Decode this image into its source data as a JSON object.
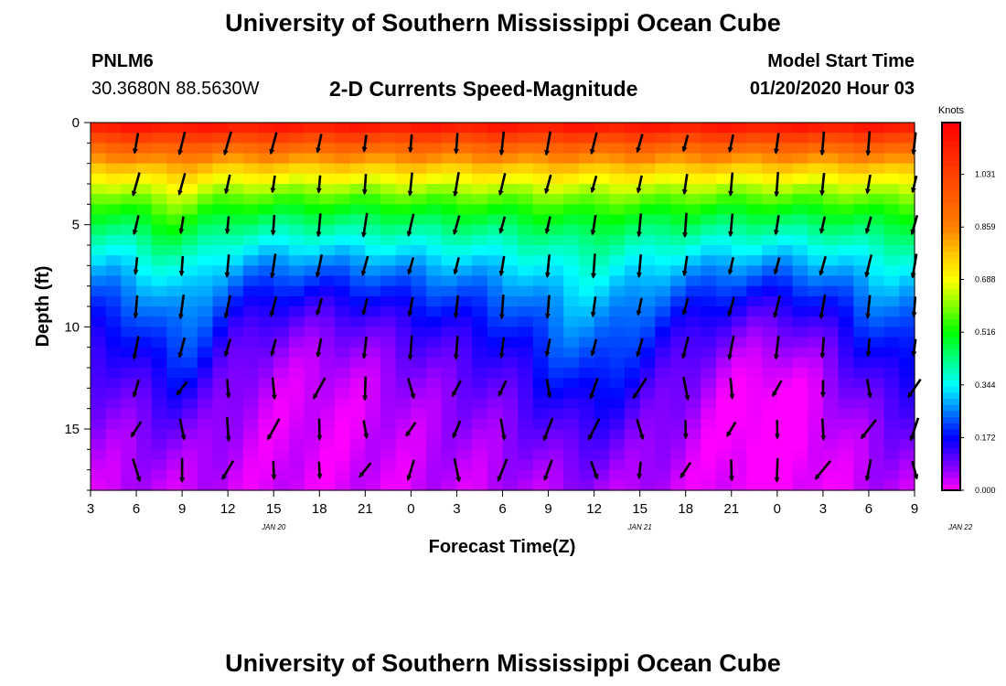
{
  "header": {
    "title": "University of Southern Mississippi Ocean Cube",
    "station": "PNLM6",
    "coords": "30.3680N 88.5630W",
    "subtitle": "2-D Currents Speed-Magnitude",
    "model_label": "Model Start Time",
    "model_time": "01/20/2020 Hour 03"
  },
  "footer": {
    "title": "University of Southern Mississippi Ocean Cube"
  },
  "chart_data": {
    "type": "heatmap",
    "title": "2-D Currents Speed-Magnitude",
    "xlabel": "Forecast Time(Z)",
    "ylabel": "Depth (ft)",
    "x_tick_labels": [
      "3",
      "6",
      "9",
      "12",
      "15",
      "18",
      "21",
      "0",
      "3",
      "6",
      "9",
      "12",
      "15",
      "18",
      "21",
      "0",
      "3",
      "6",
      "9"
    ],
    "x_date_labels": [
      {
        "label": "JAN 20",
        "at_hour": 15
      },
      {
        "label": "JAN 21",
        "at_hour": 39
      },
      {
        "label": "JAN 22",
        "at_hour": 60
      }
    ],
    "x_range_hours": [
      3,
      57
    ],
    "y_ticks": [
      0,
      5,
      10,
      15
    ],
    "y_tick_labels": [
      "0",
      "5",
      "10",
      "15"
    ],
    "y_range_ft": [
      0,
      18
    ],
    "colorbar": {
      "unit": "Knots",
      "ticks": [
        "1.031",
        "0.859",
        "0.688",
        "0.516",
        "0.344",
        "0.172",
        "0.000"
      ],
      "tick_values": [
        1.031,
        0.859,
        0.688,
        0.516,
        0.344,
        0.172,
        0.0
      ],
      "range": [
        0.0,
        1.2
      ]
    },
    "arrow_times_hours": [
      6,
      9,
      12,
      15,
      18,
      21,
      24,
      27,
      30,
      33,
      36,
      39,
      42,
      45,
      48,
      51,
      54,
      57
    ],
    "arrow_depths_ft": [
      1,
      3,
      5,
      7,
      9,
      11,
      13,
      15,
      17
    ],
    "colors": {
      "magenta": "#ff00ff",
      "purple": "#8000ff",
      "blue": "#0000ff",
      "mid_blue": "#0080ff",
      "cyan": "#00ffff",
      "green": "#00ff00",
      "yellow": "#ffff00",
      "orange": "#ff8000",
      "red": "#ff0000"
    }
  }
}
